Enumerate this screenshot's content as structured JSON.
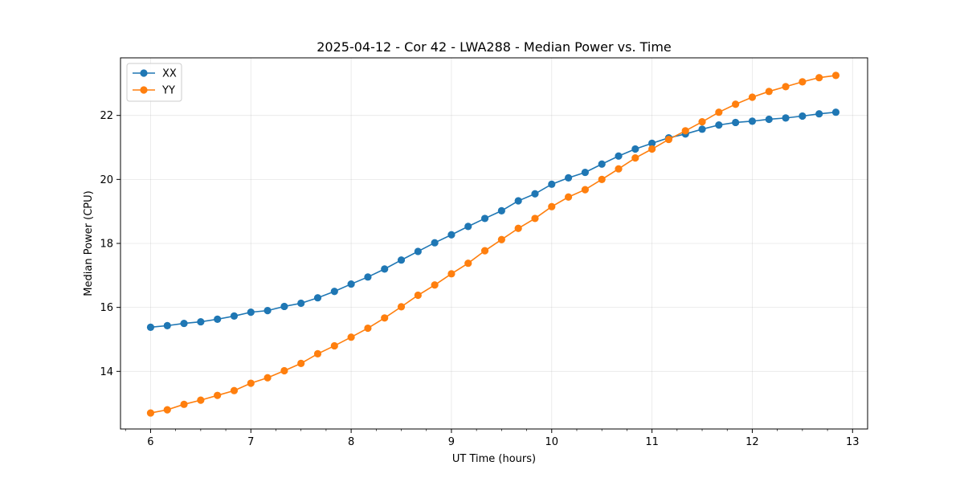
{
  "chart_data": {
    "type": "line",
    "title": "2025-04-12 - Cor 42 - LWA288 - Median Power vs. Time",
    "xlabel": "UT Time (hours)",
    "ylabel": "Median Power (CPU)",
    "xlim": [
      5.7,
      13.15
    ],
    "ylim": [
      12.2,
      23.8
    ],
    "xticks": [
      6,
      7,
      8,
      9,
      10,
      11,
      12,
      13
    ],
    "yticks": [
      14,
      16,
      18,
      20,
      22
    ],
    "grid": true,
    "legend_position": "top-left",
    "x": [
      6.0,
      6.1667,
      6.3333,
      6.5,
      6.6667,
      6.8333,
      7.0,
      7.1667,
      7.3333,
      7.5,
      7.6667,
      7.8333,
      8.0,
      8.1667,
      8.3333,
      8.5,
      8.6667,
      8.8333,
      9.0,
      9.1667,
      9.3333,
      9.5,
      9.6667,
      9.8333,
      10.0,
      10.1667,
      10.3333,
      10.5,
      10.6667,
      10.8333,
      11.0,
      11.1667,
      11.3333,
      11.5,
      11.6667,
      11.8333,
      12.0,
      12.1667,
      12.3333,
      12.5,
      12.6667,
      12.8333
    ],
    "series": [
      {
        "name": "XX",
        "color": "#1f77b4",
        "values": [
          15.38,
          15.43,
          15.5,
          15.55,
          15.63,
          15.73,
          15.85,
          15.9,
          16.03,
          16.13,
          16.3,
          16.5,
          16.73,
          16.95,
          17.2,
          17.48,
          17.75,
          18.02,
          18.27,
          18.53,
          18.78,
          19.02,
          19.33,
          19.55,
          19.85,
          20.05,
          20.22,
          20.48,
          20.73,
          20.95,
          21.13,
          21.3,
          21.42,
          21.57,
          21.7,
          21.78,
          21.82,
          21.88,
          21.92,
          21.98,
          22.05,
          22.1
        ]
      },
      {
        "name": "YY",
        "color": "#ff7f0e",
        "values": [
          12.7,
          12.8,
          12.97,
          13.1,
          13.25,
          13.4,
          13.63,
          13.8,
          14.02,
          14.25,
          14.55,
          14.8,
          15.07,
          15.35,
          15.67,
          16.02,
          16.38,
          16.7,
          17.05,
          17.38,
          17.77,
          18.12,
          18.47,
          18.78,
          19.15,
          19.45,
          19.68,
          20.0,
          20.33,
          20.67,
          20.95,
          21.25,
          21.52,
          21.8,
          22.1,
          22.35,
          22.57,
          22.75,
          22.9,
          23.05,
          23.18,
          23.25
        ]
      }
    ]
  }
}
